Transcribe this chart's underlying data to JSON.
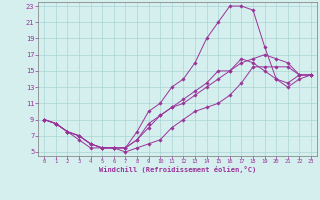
{
  "xlabel": "Windchill (Refroidissement éolien,°C)",
  "ylabel": "",
  "bg_color": "#d5efef",
  "grid_color": "#aad4d4",
  "line_color": "#993399",
  "xlim": [
    -0.5,
    23.5
  ],
  "ylim": [
    4.5,
    23.5
  ],
  "yticks": [
    5,
    7,
    9,
    11,
    13,
    15,
    17,
    19,
    21,
    23
  ],
  "xticks": [
    0,
    1,
    2,
    3,
    4,
    5,
    6,
    7,
    8,
    9,
    10,
    11,
    12,
    13,
    14,
    15,
    16,
    17,
    18,
    19,
    20,
    21,
    22,
    23
  ],
  "lines": [
    {
      "x": [
        0,
        1,
        2,
        3,
        4,
        5,
        6,
        7,
        8,
        9,
        10,
        11,
        12,
        13,
        14,
        15,
        16,
        17,
        18,
        19,
        20,
        21,
        22,
        23
      ],
      "y": [
        9,
        8.5,
        7.5,
        6.5,
        5.5,
        5.5,
        5.5,
        5.5,
        7.5,
        10,
        11,
        13,
        14,
        16,
        19,
        21,
        23,
        23,
        22.5,
        18,
        14,
        13,
        14,
        14.5
      ]
    },
    {
      "x": [
        0,
        1,
        2,
        3,
        4,
        5,
        6,
        7,
        8,
        9,
        10,
        11,
        12,
        13,
        14,
        15,
        16,
        17,
        18,
        19,
        20,
        21,
        22,
        23
      ],
      "y": [
        9,
        8.5,
        7.5,
        7,
        6,
        5.5,
        5.5,
        5.5,
        6.5,
        8,
        9.5,
        10.5,
        11,
        12,
        13,
        14,
        15,
        16,
        16.5,
        17,
        16.5,
        16,
        14.5,
        14.5
      ]
    },
    {
      "x": [
        0,
        1,
        2,
        3,
        4,
        5,
        6,
        7,
        8,
        9,
        10,
        11,
        12,
        13,
        14,
        15,
        16,
        17,
        18,
        19,
        20,
        21,
        22,
        23
      ],
      "y": [
        9,
        8.5,
        7.5,
        7,
        6,
        5.5,
        5.5,
        5.5,
        6.5,
        8.5,
        9.5,
        10.5,
        11.5,
        12.5,
        13.5,
        15,
        15,
        16.5,
        16,
        15,
        14,
        13.5,
        14.5,
        14.5
      ]
    },
    {
      "x": [
        0,
        1,
        2,
        3,
        4,
        5,
        6,
        7,
        8,
        9,
        10,
        11,
        12,
        13,
        14,
        15,
        16,
        17,
        18,
        19,
        20,
        21,
        22,
        23
      ],
      "y": [
        9,
        8.5,
        7.5,
        7,
        6,
        5.5,
        5.5,
        5,
        5.5,
        6,
        6.5,
        8,
        9,
        10,
        10.5,
        11,
        12,
        13.5,
        15.5,
        15.5,
        15.5,
        15.5,
        14.5,
        14.5
      ]
    }
  ]
}
